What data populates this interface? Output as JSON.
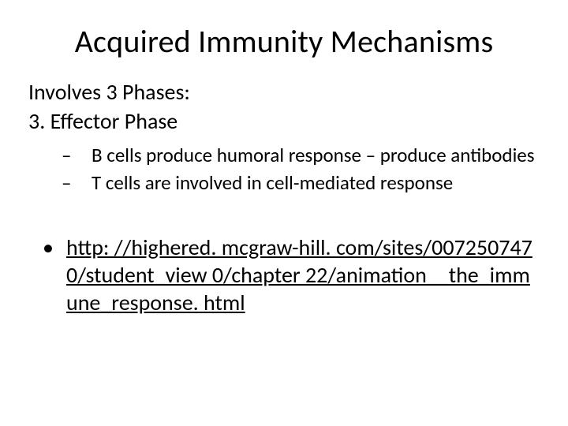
{
  "slide": {
    "background_color": "#ffffff",
    "text_color": "#000000",
    "font_family": "Calibri",
    "title": {
      "text": "Acquired Immunity Mechanisms",
      "fontsize": 40,
      "align": "center"
    },
    "body": {
      "fontsize": 28,
      "intro_lines": [
        "Involves 3 Phases:",
        "3. Effector Phase"
      ],
      "dash_bullets_fontsize": 25,
      "dash_bullets": [
        "B cells produce humoral response – produce antibodies",
        "T cells are involved in cell-mediated response"
      ],
      "dot_bullets_fontsize": 28,
      "link_text": "http: //highered. mcgraw-hill. com/sites/0072507470/student_view 0/chapter 22/animation__the_immune_response. html",
      "link_underline": true
    }
  }
}
